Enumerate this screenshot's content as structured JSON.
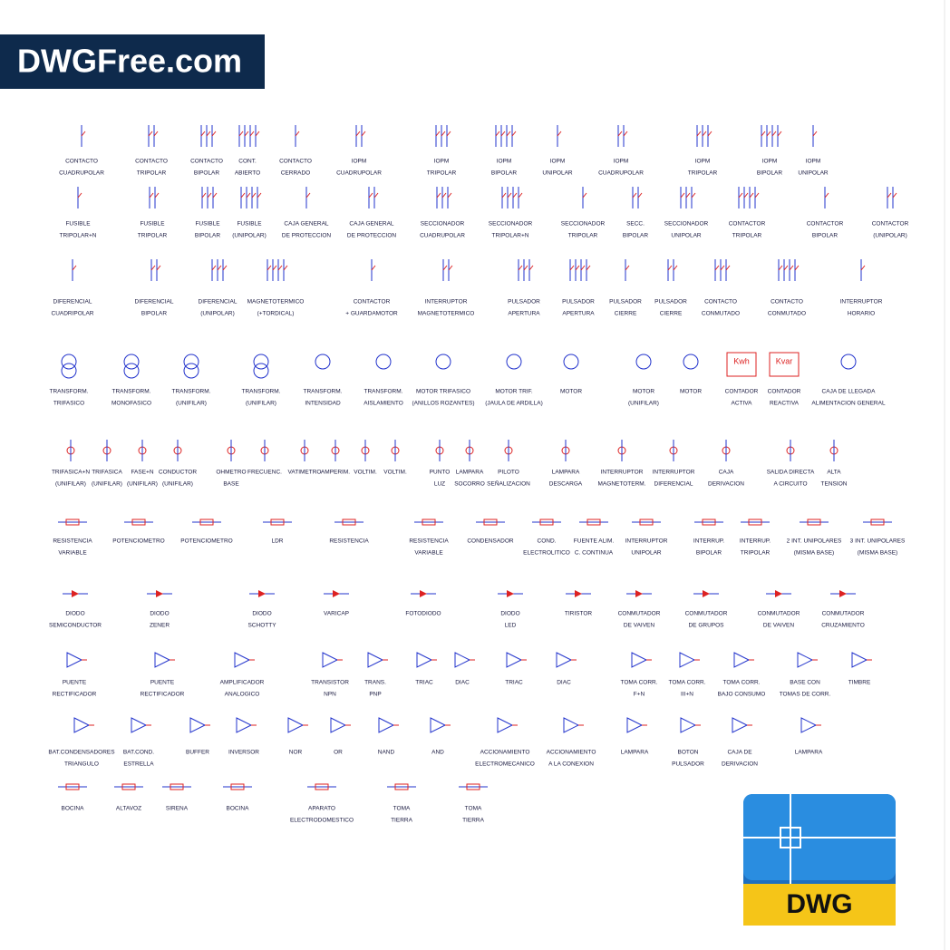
{
  "logo": "DWGFree.com",
  "badge": "DWG",
  "rows": [
    {
      "items": [
        {
          "lines": [
            "CONTACTO",
            "CUADRUPOLAR"
          ]
        },
        {
          "lines": [
            "CONTACTO",
            "TRIPOLAR"
          ]
        },
        {
          "lines": [
            "CONTACTO",
            "BIPOLAR"
          ]
        },
        {
          "lines": [
            "CONT.",
            "ABIERTO"
          ]
        },
        {
          "lines": [
            "CONTACTO",
            "CERRADO"
          ]
        },
        {
          "lines": [
            "IOPM",
            "CUADRUPOLAR"
          ]
        },
        {
          "lines": [
            "IOPM",
            "TRIPOLAR"
          ]
        },
        {
          "lines": [
            "IOPM",
            "BIPOLAR"
          ]
        },
        {
          "lines": [
            "IOPM",
            "UNIPOLAR"
          ]
        },
        {
          "lines": [
            "IOPM",
            "CUADRUPOLAR"
          ]
        },
        {
          "lines": [
            "IOPM",
            "TRIPOLAR"
          ]
        },
        {
          "lines": [
            "IOPM",
            "BIPOLAR"
          ]
        },
        {
          "lines": [
            "IOPM",
            "UNIPOLAR"
          ]
        }
      ]
    },
    {
      "items": [
        {
          "lines": [
            "FUSIBLE",
            "TRIPOLAR+N"
          ]
        },
        {
          "lines": [
            "FUSIBLE",
            "TRIPOLAR"
          ]
        },
        {
          "lines": [
            "FUSIBLE",
            "BIPOLAR"
          ]
        },
        {
          "lines": [
            "FUSIBLE",
            "(UNIPOLAR)"
          ]
        },
        {
          "lines": [
            "CAJA GENERAL",
            "DE PROTECCION"
          ]
        },
        {
          "lines": [
            "CAJA GENERAL",
            "DE PROTECCION"
          ]
        },
        {
          "lines": [
            "SECCIONADOR",
            "CUADRUPOLAR"
          ]
        },
        {
          "lines": [
            "SECCIONADOR",
            "TRIPOLAR+N"
          ]
        },
        {
          "lines": [
            "SECCIONADOR",
            "TRIPOLAR"
          ]
        },
        {
          "lines": [
            "SECC.",
            "BIPOLAR"
          ]
        },
        {
          "lines": [
            "SECCIONADOR",
            "UNIPOLAR"
          ]
        },
        {
          "lines": [
            "CONTACTOR",
            "TRIPOLAR"
          ]
        },
        {
          "lines": [
            "CONTACTOR",
            "BIPOLAR"
          ]
        },
        {
          "lines": [
            "CONTACTOR",
            "(UNIPOLAR)"
          ]
        }
      ]
    },
    {
      "items": [
        {
          "lines": [
            "DIFERENCIAL",
            "CUADRIPOLAR"
          ]
        },
        {
          "lines": [
            "DIFERENCIAL",
            "BIPOLAR"
          ]
        },
        {
          "lines": [
            "DIFERENCIAL",
            "(UNIPOLAR)"
          ]
        },
        {
          "lines": [
            "MAGNETOTERMICO",
            "(+TORDICAL)"
          ]
        },
        {
          "lines": [
            "CONTACTOR",
            "+ GUARDAMOTOR"
          ]
        },
        {
          "lines": [
            "INTERRUPTOR",
            "MAGNETOTERMICO"
          ]
        },
        {
          "lines": [
            "PULSADOR",
            "APERTURA"
          ]
        },
        {
          "lines": [
            "PULSADOR",
            "APERTURA"
          ]
        },
        {
          "lines": [
            "PULSADOR",
            "CIERRE"
          ]
        },
        {
          "lines": [
            "PULSADOR",
            "CIERRE"
          ]
        },
        {
          "lines": [
            "CONTACTO",
            "CONMUTADO"
          ]
        },
        {
          "lines": [
            "CONTACTO",
            "CONMUTADO"
          ]
        },
        {
          "lines": [
            "INTERRUPTOR",
            "HORARIO"
          ]
        }
      ]
    },
    {
      "items": [
        {
          "lines": [
            "TRANSFORM.",
            "TRIFASICO"
          ]
        },
        {
          "lines": [
            "TRANSFORM.",
            "MONOFASICO"
          ]
        },
        {
          "lines": [
            "TRANSFORM.",
            "(UNIFILAR)"
          ]
        },
        {
          "lines": [
            "TRANSFORM.",
            "(UNIFILAR)"
          ]
        },
        {
          "lines": [
            "TRANSFORM.",
            "INTENSIDAD"
          ]
        },
        {
          "lines": [
            "TRANSFORM.",
            "AISLAMIENTO"
          ]
        },
        {
          "lines": [
            "MOTOR TRIFASICO",
            "(ANILLOS ROZANTES)"
          ]
        },
        {
          "lines": [
            "MOTOR TRIF.",
            "(JAULA DE ARDILLA)"
          ]
        },
        {
          "lines": [
            "MOTOR"
          ]
        },
        {
          "lines": [
            "MOTOR",
            "(UNIFILAR)"
          ]
        },
        {
          "lines": [
            "MOTOR"
          ]
        },
        {
          "lines": [
            "CONTADOR",
            "ACTIVA"
          ],
          "symbol_text": "Kwh"
        },
        {
          "lines": [
            "CONTADOR",
            "REACTIVA"
          ],
          "symbol_text": "Kvar"
        },
        {
          "lines": [
            "CAJA DE LLEGADA",
            "ALIMENTACION GENERAL"
          ]
        }
      ]
    },
    {
      "items": [
        {
          "lines": [
            "TRIFASICA+N",
            "(UNIFILAR)"
          ]
        },
        {
          "lines": [
            "TRIFASICA",
            "(UNIFILAR)"
          ]
        },
        {
          "lines": [
            "FASE+N",
            "(UNIFILAR)"
          ]
        },
        {
          "lines": [
            "CONDUCTOR",
            "(UNIFILAR)"
          ]
        },
        {
          "lines": [
            "OHMETRO",
            "BASE"
          ]
        },
        {
          "lines": [
            "FRECUENC."
          ]
        },
        {
          "lines": [
            "VATIMETRO"
          ]
        },
        {
          "lines": [
            "AMPERIM."
          ]
        },
        {
          "lines": [
            "VOLTIM."
          ]
        },
        {
          "lines": [
            "VOLTIM."
          ]
        },
        {
          "lines": [
            "PUNTO",
            "LUZ"
          ]
        },
        {
          "lines": [
            "LAMPARA",
            "SOCORRO"
          ]
        },
        {
          "lines": [
            "PILOTO",
            "SEÑALIZACION"
          ]
        },
        {
          "lines": [
            "LAMPARA",
            "DESCARGA"
          ]
        },
        {
          "lines": [
            "INTERRUPTOR",
            "MAGNETOTERM."
          ]
        },
        {
          "lines": [
            "INTERRUPTOR",
            "DIFERENCIAL"
          ]
        },
        {
          "lines": [
            "CAJA",
            "DERIVACION"
          ]
        },
        {
          "lines": [
            "SALIDA DIRECTA",
            "A CIRCUITO"
          ]
        },
        {
          "lines": [
            "ALTA",
            "TENSION"
          ]
        }
      ]
    },
    {
      "items": [
        {
          "lines": [
            "RESISTENCIA",
            "VARIABLE"
          ]
        },
        {
          "lines": [
            "POTENCIOMETRO"
          ]
        },
        {
          "lines": [
            "POTENCIOMETRO"
          ]
        },
        {
          "lines": [
            "LDR"
          ]
        },
        {
          "lines": [
            "RESISTENCIA"
          ]
        },
        {
          "lines": [
            "RESISTENCIA",
            "VARIABLE"
          ]
        },
        {
          "lines": [
            "CONDENSADOR"
          ]
        },
        {
          "lines": [
            "COND.",
            "ELECTROLITICO"
          ]
        },
        {
          "lines": [
            "FUENTE ALIM.",
            "C. CONTINUA"
          ]
        },
        {
          "lines": [
            "INTERRUPTOR",
            "UNIPOLAR"
          ]
        },
        {
          "lines": [
            "INTERRUP.",
            "BIPOLAR"
          ]
        },
        {
          "lines": [
            "INTERRUP.",
            "TRIPOLAR"
          ]
        },
        {
          "lines": [
            "2 INT. UNIPOLARES",
            "(MISMA BASE)"
          ]
        },
        {
          "lines": [
            "3 INT. UNIPOLARES",
            "(MISMA BASE)"
          ]
        }
      ]
    },
    {
      "items": [
        {
          "lines": [
            "DIODO",
            "SEMICONDUCTOR"
          ]
        },
        {
          "lines": [
            "DIODO",
            "ZENER"
          ]
        },
        {
          "lines": [
            "DIODO",
            "SCHOTTY"
          ]
        },
        {
          "lines": [
            "VARICAP"
          ]
        },
        {
          "lines": [
            "FOTODIODO"
          ]
        },
        {
          "lines": [
            "DIODO",
            "LED"
          ]
        },
        {
          "lines": [
            "TIRISTOR"
          ]
        },
        {
          "lines": [
            "CONMUTADOR",
            "DE VAIVEN"
          ]
        },
        {
          "lines": [
            "CONMUTADOR",
            "DE GRUPOS"
          ]
        },
        {
          "lines": [
            "CONMUTADOR",
            "DE VAIVEN"
          ]
        },
        {
          "lines": [
            "CONMUTADOR",
            "CRUZAMIENTO"
          ]
        }
      ]
    },
    {
      "items": [
        {
          "lines": [
            "PUENTE",
            "RECTIFICADOR"
          ]
        },
        {
          "lines": [
            "PUENTE",
            "RECTIFICADOR"
          ]
        },
        {
          "lines": [
            "AMPLIFICADOR",
            "ANALOGICO"
          ]
        },
        {
          "lines": [
            "TRANSISTOR",
            "NPN"
          ]
        },
        {
          "lines": [
            "TRANS.",
            "PNP"
          ]
        },
        {
          "lines": [
            "TRIAC"
          ]
        },
        {
          "lines": [
            "DIAC"
          ]
        },
        {
          "lines": [
            "TRIAC"
          ]
        },
        {
          "lines": [
            "DIAC"
          ]
        },
        {
          "lines": [
            "TOMA CORR.",
            "F+N"
          ]
        },
        {
          "lines": [
            "TOMA CORR.",
            "III+N"
          ]
        },
        {
          "lines": [
            "TOMA CORR.",
            "BAJO CONSUMO"
          ]
        },
        {
          "lines": [
            "BASE CON",
            "TOMAS DE CORR."
          ]
        },
        {
          "lines": [
            "TIMBRE"
          ]
        }
      ]
    },
    {
      "items": [
        {
          "lines": [
            "BAT.CONDENSADORES",
            "TRIANGULO"
          ]
        },
        {
          "lines": [
            "BAT.COND.",
            "ESTRELLA"
          ]
        },
        {
          "lines": [
            "BUFFER"
          ]
        },
        {
          "lines": [
            "INVERSOR"
          ]
        },
        {
          "lines": [
            "NOR"
          ]
        },
        {
          "lines": [
            "OR"
          ]
        },
        {
          "lines": [
            "NAND"
          ]
        },
        {
          "lines": [
            "AND"
          ]
        },
        {
          "lines": [
            "ACCIONAMIENTO",
            "ELECTROMECANICO"
          ]
        },
        {
          "lines": [
            "ACCIONAMIENTO",
            "A LA CONEXION"
          ]
        },
        {
          "lines": [
            "LAMPARA"
          ]
        },
        {
          "lines": [
            "BOTON",
            "PULSADOR"
          ]
        },
        {
          "lines": [
            "CAJA DE",
            "DERIVACION"
          ]
        },
        {
          "lines": [
            "LAMPARA"
          ]
        }
      ]
    },
    {
      "items": [
        {
          "lines": [
            "BOCINA"
          ]
        },
        {
          "lines": [
            "ALTAVOZ"
          ]
        },
        {
          "lines": [
            "SIRENA"
          ]
        },
        {
          "lines": [
            "BOCINA"
          ]
        },
        {
          "lines": [
            "APARATO",
            "ELECTRODOMESTICO"
          ]
        },
        {
          "lines": [
            "TOMA",
            "TIERRA"
          ]
        },
        {
          "lines": [
            "TOMA",
            "TIERRA"
          ]
        }
      ]
    }
  ]
}
